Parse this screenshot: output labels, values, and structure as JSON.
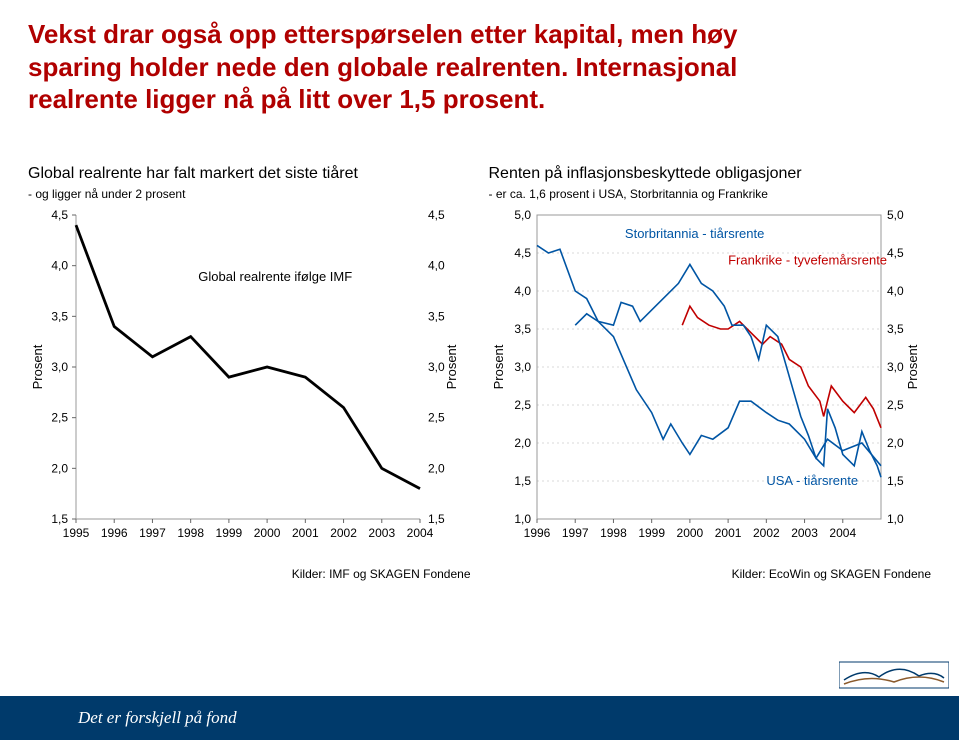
{
  "title_lines": [
    "Vekst drar også opp etterspørselen etter kapital, men høy",
    "sparing holder nede den globale realrenten. Internasjonal",
    "realrente ligger nå på litt over 1,5 prosent."
  ],
  "footer_text": "Det er forskjell på fond",
  "left_chart": {
    "title": "Global realrente har falt markert det siste tiåret",
    "subtitle": "- og ligger nå under 2 prosent",
    "y_label": "Prosent",
    "y_label_right": "Prosent",
    "series_label": "Global realrente ifølge IMF",
    "source": "Kilder: IMF og SKAGEN Fondene",
    "x_ticks": [
      "1995",
      "1996",
      "1997",
      "1998",
      "1999",
      "2000",
      "2001",
      "2002",
      "2003",
      "2004"
    ],
    "y_ticks": [
      1.5,
      2.0,
      2.5,
      3.0,
      3.5,
      4.0,
      4.5
    ],
    "ylim": [
      1.5,
      4.5
    ],
    "xlim": [
      1995,
      2004
    ],
    "line_color": "#000000",
    "line_width": 2.8,
    "plot_border_color": "#999999",
    "grid_color": "#cfcfcf",
    "tick_fontsize": 12,
    "label_fontsize": 13,
    "data": [
      {
        "x": 1995,
        "y": 4.4
      },
      {
        "x": 1996,
        "y": 3.4
      },
      {
        "x": 1997,
        "y": 3.1
      },
      {
        "x": 1998,
        "y": 3.3
      },
      {
        "x": 1999,
        "y": 2.9
      },
      {
        "x": 2000,
        "y": 3.0
      },
      {
        "x": 2001,
        "y": 2.9
      },
      {
        "x": 2002,
        "y": 2.6
      },
      {
        "x": 2003,
        "y": 2.0
      },
      {
        "x": 2004,
        "y": 1.8
      }
    ]
  },
  "right_chart": {
    "title": "Renten på inflasjonsbeskyttede obligasjoner",
    "subtitle": "- er ca. 1,6 prosent i USA, Storbritannia og Frankrike",
    "y_label": "Prosent",
    "y_label_right": "Prosent",
    "source": "Kilder: EcoWin og SKAGEN Fondene",
    "x_ticks": [
      "1996",
      "1997",
      "1998",
      "1999",
      "2000",
      "2001",
      "2002",
      "2003",
      "2004"
    ],
    "y_ticks": [
      1.0,
      1.5,
      2.0,
      2.5,
      3.0,
      3.5,
      4.0,
      4.5,
      5.0
    ],
    "ylim": [
      1.0,
      5.0
    ],
    "xlim": [
      1996,
      2005
    ],
    "grid_color": "#d8d8d8",
    "plot_border_color": "#999999",
    "tick_fontsize": 12,
    "series": [
      {
        "name": "Storbritannia - tiårsrente",
        "label": "Storbritannia - tiårsrente",
        "color": "#0055a4",
        "label_x": 1998.3,
        "label_y": 4.7,
        "data": [
          {
            "x": 1996.0,
            "y": 4.6
          },
          {
            "x": 1996.3,
            "y": 4.5
          },
          {
            "x": 1996.6,
            "y": 4.55
          },
          {
            "x": 1997.0,
            "y": 4.0
          },
          {
            "x": 1997.3,
            "y": 3.9
          },
          {
            "x": 1997.6,
            "y": 3.6
          },
          {
            "x": 1998.0,
            "y": 3.4
          },
          {
            "x": 1998.3,
            "y": 3.05
          },
          {
            "x": 1998.6,
            "y": 2.7
          },
          {
            "x": 1999.0,
            "y": 2.4
          },
          {
            "x": 1999.3,
            "y": 2.05
          },
          {
            "x": 1999.5,
            "y": 2.25
          },
          {
            "x": 1999.8,
            "y": 2.0
          },
          {
            "x": 2000.0,
            "y": 1.85
          },
          {
            "x": 2000.3,
            "y": 2.1
          },
          {
            "x": 2000.6,
            "y": 2.05
          },
          {
            "x": 2001.0,
            "y": 2.2
          },
          {
            "x": 2001.3,
            "y": 2.55
          },
          {
            "x": 2001.6,
            "y": 2.55
          },
          {
            "x": 2002.0,
            "y": 2.4
          },
          {
            "x": 2002.3,
            "y": 2.3
          },
          {
            "x": 2002.6,
            "y": 2.25
          },
          {
            "x": 2003.0,
            "y": 2.05
          },
          {
            "x": 2003.3,
            "y": 1.8
          },
          {
            "x": 2003.6,
            "y": 2.05
          },
          {
            "x": 2004.0,
            "y": 1.9
          },
          {
            "x": 2004.5,
            "y": 2.0
          },
          {
            "x": 2005.0,
            "y": 1.7
          }
        ]
      },
      {
        "name": "Frankrike - tyvefemårsrente",
        "label": "Frankrike - tyvefemårsrente",
        "color": "#c00000",
        "label_x": 2001.0,
        "label_y": 4.35,
        "data": [
          {
            "x": 1999.8,
            "y": 3.55
          },
          {
            "x": 2000.0,
            "y": 3.8
          },
          {
            "x": 2000.2,
            "y": 3.65
          },
          {
            "x": 2000.5,
            "y": 3.55
          },
          {
            "x": 2000.8,
            "y": 3.5
          },
          {
            "x": 2001.0,
            "y": 3.5
          },
          {
            "x": 2001.3,
            "y": 3.6
          },
          {
            "x": 2001.6,
            "y": 3.45
          },
          {
            "x": 2001.9,
            "y": 3.3
          },
          {
            "x": 2002.1,
            "y": 3.4
          },
          {
            "x": 2002.4,
            "y": 3.3
          },
          {
            "x": 2002.6,
            "y": 3.1
          },
          {
            "x": 2002.9,
            "y": 3.0
          },
          {
            "x": 2003.1,
            "y": 2.75
          },
          {
            "x": 2003.4,
            "y": 2.55
          },
          {
            "x": 2003.5,
            "y": 2.35
          },
          {
            "x": 2003.7,
            "y": 2.75
          },
          {
            "x": 2004.0,
            "y": 2.55
          },
          {
            "x": 2004.3,
            "y": 2.4
          },
          {
            "x": 2004.6,
            "y": 2.6
          },
          {
            "x": 2004.8,
            "y": 2.45
          },
          {
            "x": 2005.0,
            "y": 2.2
          }
        ]
      },
      {
        "name": "USA - tiårsrente",
        "label": "USA - tiårsrente",
        "color": "#0055a4",
        "label_x": 2002.0,
        "label_y": 1.45,
        "data": [
          {
            "x": 1997.0,
            "y": 3.55
          },
          {
            "x": 1997.3,
            "y": 3.7
          },
          {
            "x": 1997.6,
            "y": 3.6
          },
          {
            "x": 1998.0,
            "y": 3.55
          },
          {
            "x": 1998.2,
            "y": 3.85
          },
          {
            "x": 1998.5,
            "y": 3.8
          },
          {
            "x": 1998.7,
            "y": 3.6
          },
          {
            "x": 1998.9,
            "y": 3.7
          },
          {
            "x": 1999.1,
            "y": 3.8
          },
          {
            "x": 1999.4,
            "y": 3.95
          },
          {
            "x": 1999.7,
            "y": 4.1
          },
          {
            "x": 2000.0,
            "y": 4.35
          },
          {
            "x": 2000.3,
            "y": 4.1
          },
          {
            "x": 2000.6,
            "y": 4.0
          },
          {
            "x": 2000.9,
            "y": 3.8
          },
          {
            "x": 2001.1,
            "y": 3.55
          },
          {
            "x": 2001.4,
            "y": 3.55
          },
          {
            "x": 2001.6,
            "y": 3.4
          },
          {
            "x": 2001.8,
            "y": 3.1
          },
          {
            "x": 2002.0,
            "y": 3.55
          },
          {
            "x": 2002.3,
            "y": 3.4
          },
          {
            "x": 2002.5,
            "y": 3.05
          },
          {
            "x": 2002.7,
            "y": 2.7
          },
          {
            "x": 2002.9,
            "y": 2.35
          },
          {
            "x": 2003.1,
            "y": 2.1
          },
          {
            "x": 2003.3,
            "y": 1.8
          },
          {
            "x": 2003.5,
            "y": 1.7
          },
          {
            "x": 2003.6,
            "y": 2.45
          },
          {
            "x": 2003.8,
            "y": 2.2
          },
          {
            "x": 2004.0,
            "y": 1.85
          },
          {
            "x": 2004.3,
            "y": 1.7
          },
          {
            "x": 2004.5,
            "y": 2.15
          },
          {
            "x": 2004.7,
            "y": 1.9
          },
          {
            "x": 2004.9,
            "y": 1.7
          },
          {
            "x": 2005.0,
            "y": 1.55
          }
        ]
      }
    ]
  }
}
